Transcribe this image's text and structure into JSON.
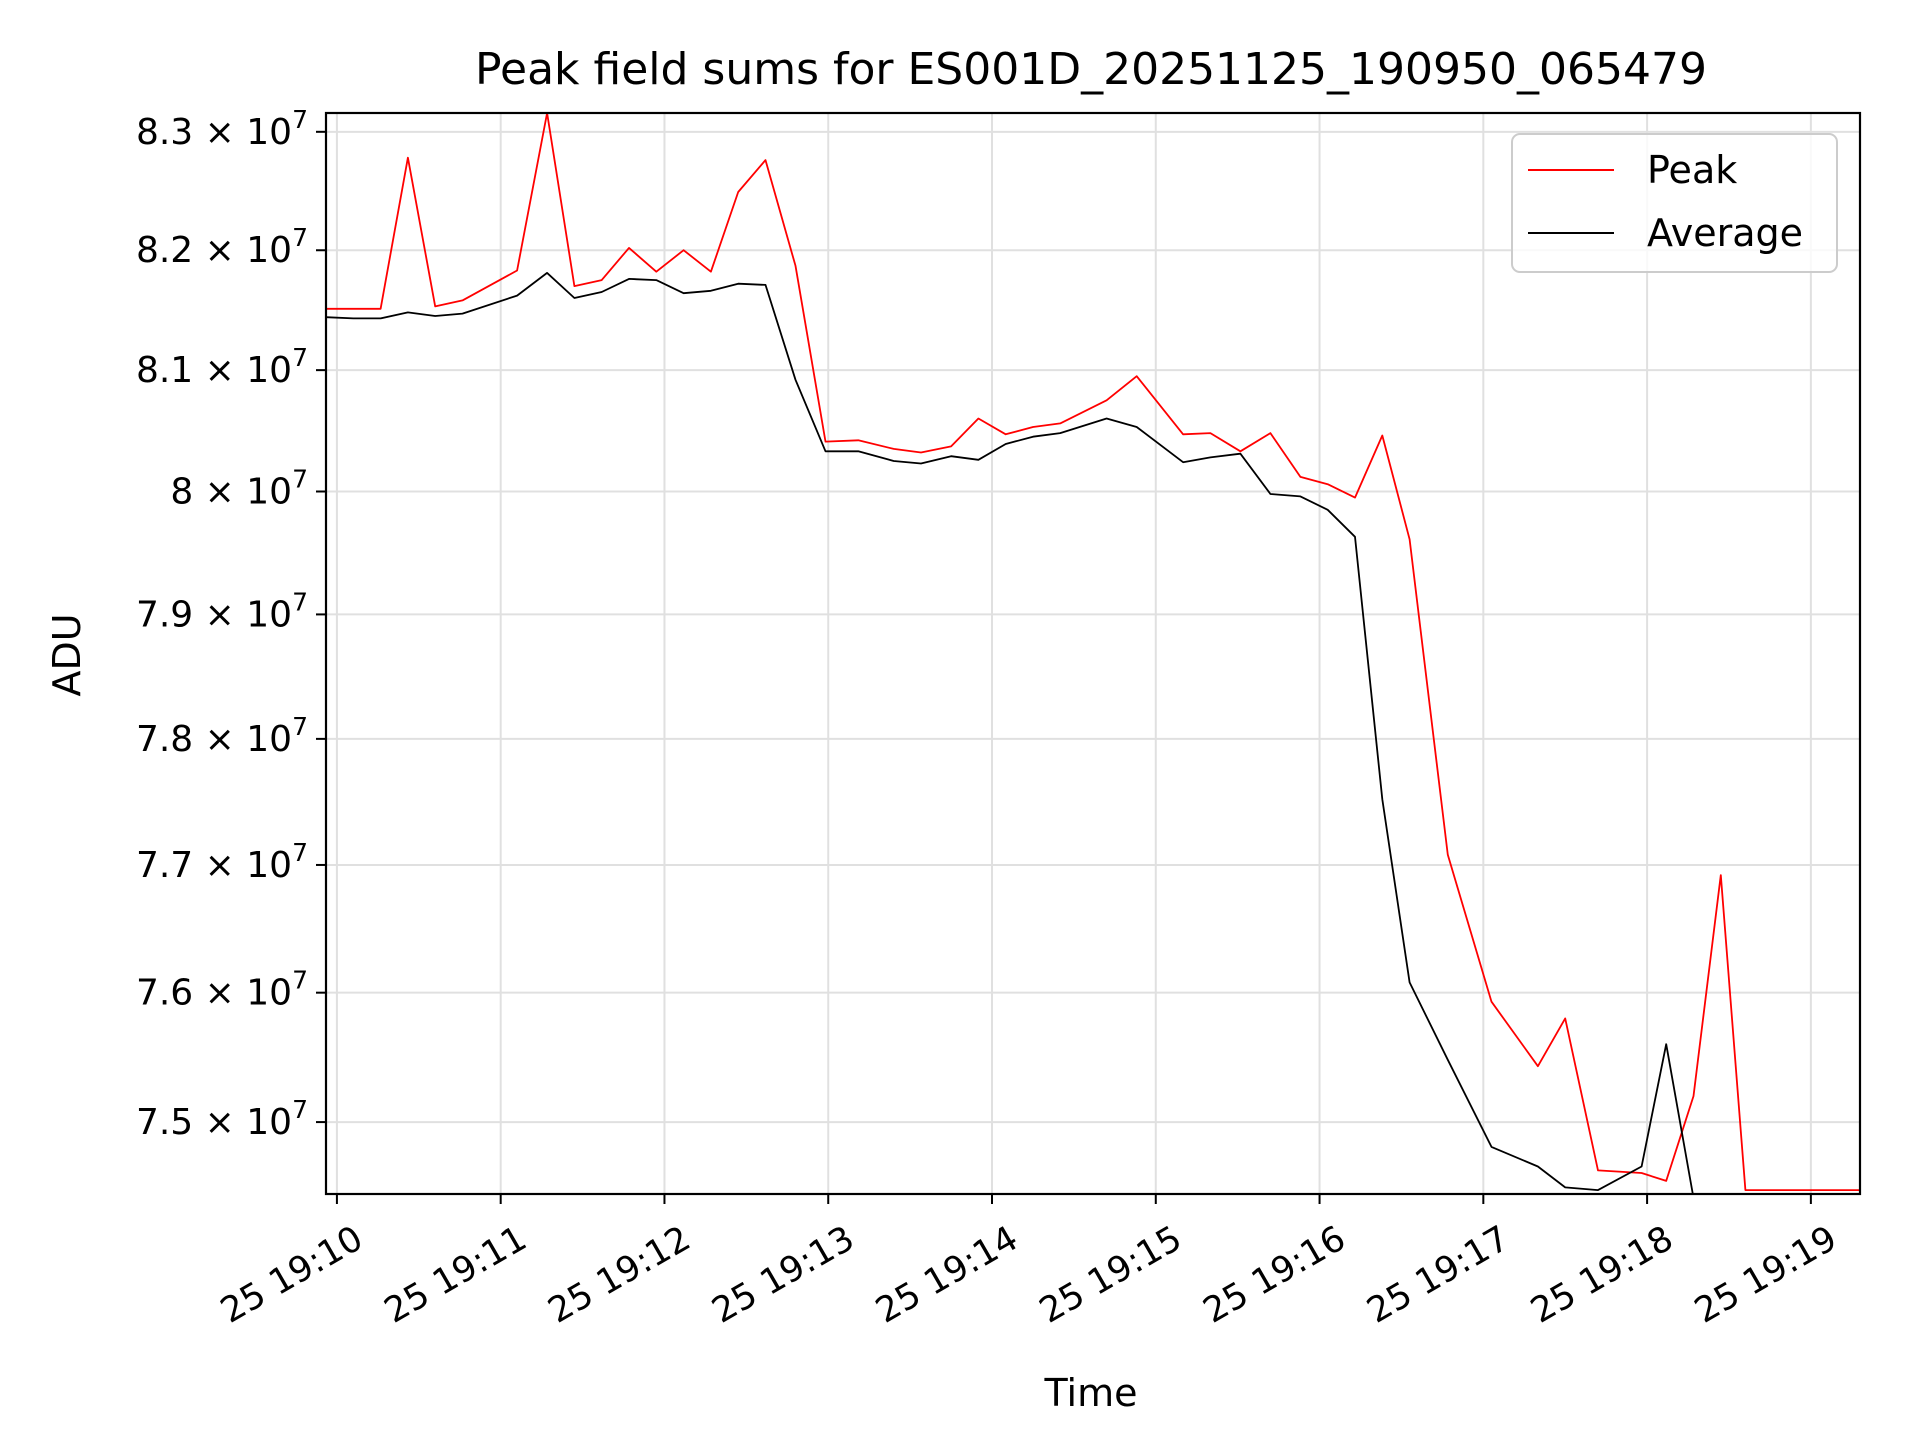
{
  "chart_data": {
    "type": "line",
    "title": "Peak field sums for ES001D_20251125_190950_065479",
    "xlabel": "Time",
    "ylabel": "ADU",
    "y_scale": "log",
    "grid": true,
    "legend_position": "top-right",
    "xlim": [
      "2025-11-25 19:09:56",
      "2025-11-25 19:19:18"
    ],
    "ylim": [
      74450000,
      83160000
    ],
    "x_ticks": [
      {
        "value": "2025-11-25 19:10:00",
        "label": "25 19:10"
      },
      {
        "value": "2025-11-25 19:11:00",
        "label": "25 19:11"
      },
      {
        "value": "2025-11-25 19:12:00",
        "label": "25 19:12"
      },
      {
        "value": "2025-11-25 19:13:00",
        "label": "25 19:13"
      },
      {
        "value": "2025-11-25 19:14:00",
        "label": "25 19:14"
      },
      {
        "value": "2025-11-25 19:15:00",
        "label": "25 19:15"
      },
      {
        "value": "2025-11-25 19:16:00",
        "label": "25 19:16"
      },
      {
        "value": "2025-11-25 19:17:00",
        "label": "25 19:17"
      },
      {
        "value": "2025-11-25 19:18:00",
        "label": "25 19:18"
      },
      {
        "value": "2025-11-25 19:19:00",
        "label": "25 19:19"
      }
    ],
    "y_ticks": [
      {
        "value": 75000000,
        "mantissa": "7.5",
        "base": "10",
        "exp": "7"
      },
      {
        "value": 76000000,
        "mantissa": "7.6",
        "base": "10",
        "exp": "7"
      },
      {
        "value": 77000000,
        "mantissa": "7.7",
        "base": "10",
        "exp": "7"
      },
      {
        "value": 78000000,
        "mantissa": "7.8",
        "base": "10",
        "exp": "7"
      },
      {
        "value": 79000000,
        "mantissa": "7.9",
        "base": "10",
        "exp": "7"
      },
      {
        "value": 80000000,
        "mantissa": "8",
        "base": "10",
        "exp": "7"
      },
      {
        "value": 81000000,
        "mantissa": "8.1",
        "base": "10",
        "exp": "7"
      },
      {
        "value": 82000000,
        "mantissa": "8.2",
        "base": "10",
        "exp": "7"
      },
      {
        "value": 83000000,
        "mantissa": "8.3",
        "base": "10",
        "exp": "7"
      }
    ],
    "x": [
      "2025-11-25 19:09:56",
      "2025-11-25 19:10:06",
      "2025-11-25 19:10:16",
      "2025-11-25 19:10:26",
      "2025-11-25 19:10:36",
      "2025-11-25 19:10:46",
      "2025-11-25 19:11:06",
      "2025-11-25 19:11:17",
      "2025-11-25 19:11:27",
      "2025-11-25 19:11:37",
      "2025-11-25 19:11:47",
      "2025-11-25 19:11:57",
      "2025-11-25 19:12:07",
      "2025-11-25 19:12:17",
      "2025-11-25 19:12:27",
      "2025-11-25 19:12:37",
      "2025-11-25 19:12:48",
      "2025-11-25 19:12:59",
      "2025-11-25 19:13:11",
      "2025-11-25 19:13:24",
      "2025-11-25 19:13:34",
      "2025-11-25 19:13:45",
      "2025-11-25 19:13:55",
      "2025-11-25 19:14:05",
      "2025-11-25 19:14:15",
      "2025-11-25 19:14:25",
      "2025-11-25 19:14:42",
      "2025-11-25 19:14:53",
      "2025-11-25 19:15:10",
      "2025-11-25 19:15:20",
      "2025-11-25 19:15:31",
      "2025-11-25 19:15:42",
      "2025-11-25 19:15:53",
      "2025-11-25 19:16:03",
      "2025-11-25 19:16:13",
      "2025-11-25 19:16:23",
      "2025-11-25 19:16:33",
      "2025-11-25 19:16:47",
      "2025-11-25 19:17:03",
      "2025-11-25 19:17:20",
      "2025-11-25 19:17:30",
      "2025-11-25 19:17:42",
      "2025-11-25 19:17:58",
      "2025-11-25 19:18:07",
      "2025-11-25 19:18:17",
      "2025-11-25 19:18:27",
      "2025-11-25 19:18:36",
      "2025-11-25 19:19:18"
    ],
    "series": [
      {
        "name": "Peak",
        "color": "#ff0000",
        "values": [
          81510000,
          81510000,
          81510000,
          82780000,
          81530000,
          81580000,
          81830000,
          83160000,
          81700000,
          81750000,
          82020000,
          81820000,
          82000000,
          81820000,
          82490000,
          82760000,
          81870000,
          80410000,
          80420000,
          80350000,
          80320000,
          80370000,
          80600000,
          80470000,
          80530000,
          80560000,
          80750000,
          80950000,
          80470000,
          80480000,
          80330000,
          80480000,
          80120000,
          80060000,
          79950000,
          80460000,
          79610000,
          77080000,
          75930000,
          75430000,
          75800000,
          74630000,
          74610000,
          74550000,
          75200000,
          76920000,
          74480000,
          74480000
        ]
      },
      {
        "name": "Average",
        "color": "#000000",
        "values": [
          81440000,
          81430000,
          81430000,
          81480000,
          81450000,
          81470000,
          81620000,
          81810000,
          81600000,
          81650000,
          81760000,
          81750000,
          81640000,
          81660000,
          81720000,
          81710000,
          80920000,
          80330000,
          80330000,
          80250000,
          80230000,
          80290000,
          80260000,
          80390000,
          80450000,
          80480000,
          80600000,
          80530000,
          80240000,
          80280000,
          80310000,
          79980000,
          79960000,
          79850000,
          79630000,
          77520000,
          76080000,
          75480000,
          74810000,
          74660000,
          74500000,
          74480000,
          74660000,
          75600000,
          74420000,
          74420000,
          74420000,
          74420000
        ]
      }
    ]
  }
}
